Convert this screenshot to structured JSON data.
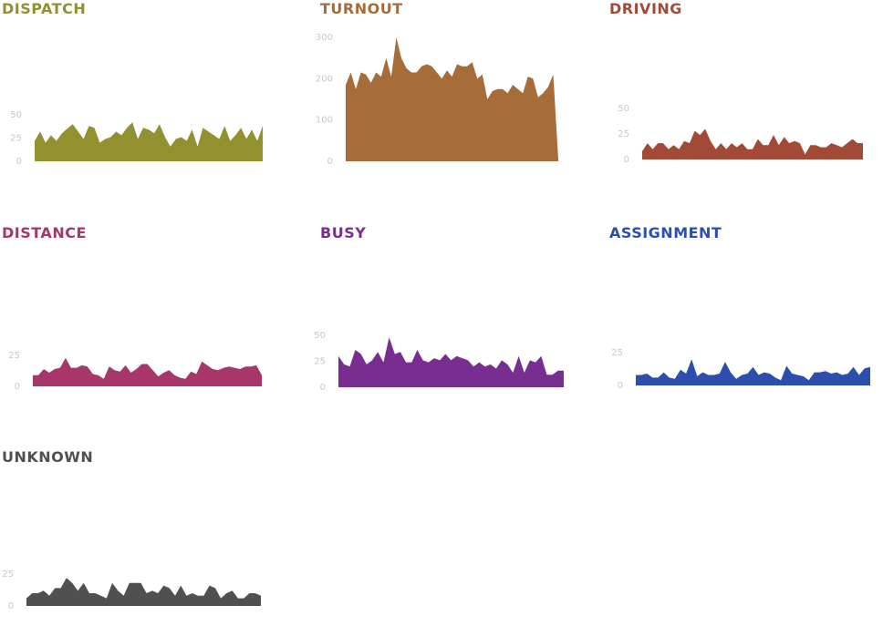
{
  "chart_data": [
    {
      "type": "area",
      "title": "DISPATCH",
      "color": "#929130",
      "ylim": [
        0,
        50
      ],
      "yticks": [
        0,
        25,
        50
      ],
      "xlabel": "",
      "ylabel": "",
      "grid": false,
      "values": [
        22,
        32,
        20,
        28,
        22,
        30,
        35,
        40,
        32,
        24,
        38,
        36,
        20,
        24,
        26,
        32,
        28,
        36,
        42,
        24,
        36,
        34,
        30,
        40,
        26,
        16,
        24,
        26,
        22,
        34,
        16,
        36,
        32,
        28,
        24,
        38,
        22,
        28,
        36,
        24,
        34,
        22,
        38
      ]
    },
    {
      "type": "area",
      "title": "TURNOUT",
      "color": "#A66C39",
      "ylim": [
        0,
        300
      ],
      "yticks": [
        0,
        100,
        200,
        300
      ],
      "xlabel": "",
      "ylabel": "",
      "grid": false,
      "values": [
        185,
        215,
        175,
        215,
        210,
        190,
        215,
        205,
        250,
        205,
        300,
        250,
        225,
        215,
        215,
        230,
        235,
        230,
        215,
        200,
        220,
        205,
        235,
        230,
        230,
        240,
        200,
        210,
        150,
        170,
        175,
        175,
        165,
        185,
        175,
        165,
        205,
        200,
        155,
        165,
        180,
        210,
        5
      ]
    },
    {
      "type": "area",
      "title": "DRIVING",
      "color": "#A34A37",
      "ylim": [
        0,
        50
      ],
      "yticks": [
        0,
        25,
        50
      ],
      "xlabel": "",
      "ylabel": "",
      "grid": false,
      "values": [
        8,
        16,
        10,
        16,
        16,
        10,
        14,
        10,
        18,
        16,
        28,
        24,
        30,
        18,
        10,
        16,
        10,
        16,
        12,
        16,
        10,
        10,
        20,
        14,
        14,
        24,
        14,
        22,
        16,
        18,
        16,
        5,
        14,
        14,
        12,
        12,
        16,
        14,
        12,
        16,
        20,
        16,
        16
      ]
    },
    {
      "type": "area",
      "title": "DISTANCE",
      "color": "#A7376B",
      "ylim": [
        0,
        25
      ],
      "yticks": [
        0,
        25
      ],
      "xlabel": "",
      "ylabel": "",
      "grid": false,
      "values": [
        9,
        9,
        14,
        11,
        14,
        15,
        23,
        15,
        15,
        17,
        16,
        10,
        9,
        6,
        16,
        13,
        12,
        17,
        11,
        14,
        18,
        18,
        13,
        8,
        11,
        13,
        9,
        7,
        6,
        12,
        10,
        20,
        17,
        14,
        13,
        15,
        16,
        15,
        14,
        16,
        16,
        17,
        9
      ]
    },
    {
      "type": "area",
      "title": "BUSY",
      "color": "#772E90",
      "ylim": [
        0,
        50
      ],
      "yticks": [
        0,
        25,
        50
      ],
      "xlabel": "",
      "ylabel": "",
      "grid": false,
      "values": [
        30,
        22,
        20,
        36,
        32,
        22,
        26,
        34,
        24,
        48,
        32,
        34,
        24,
        24,
        36,
        26,
        24,
        28,
        26,
        32,
        26,
        30,
        28,
        26,
        20,
        24,
        20,
        22,
        18,
        26,
        22,
        14,
        30,
        14,
        26,
        24,
        30,
        12,
        12,
        16,
        16
      ]
    },
    {
      "type": "area",
      "title": "ASSIGNMENT",
      "color": "#2E4EAE",
      "ylim": [
        0,
        25
      ],
      "yticks": [
        0,
        25
      ],
      "xlabel": "",
      "ylabel": "",
      "grid": false,
      "values": [
        8,
        8,
        9,
        6,
        6,
        10,
        6,
        5,
        12,
        9,
        20,
        7,
        10,
        8,
        8,
        9,
        18,
        10,
        5,
        8,
        9,
        14,
        8,
        10,
        9,
        6,
        4,
        15,
        9,
        8,
        7,
        4,
        10,
        10,
        11,
        9,
        10,
        8,
        9,
        14,
        8,
        13,
        14
      ]
    },
    {
      "type": "area",
      "title": "UNKNOWN",
      "color": "#505050",
      "ylim": [
        0,
        25
      ],
      "yticks": [
        0,
        25
      ],
      "xlabel": "",
      "ylabel": "",
      "grid": false,
      "values": [
        6,
        10,
        10,
        12,
        8,
        14,
        14,
        22,
        18,
        12,
        18,
        10,
        10,
        8,
        6,
        18,
        12,
        8,
        18,
        18,
        18,
        10,
        12,
        10,
        16,
        14,
        8,
        16,
        8,
        10,
        8,
        8,
        16,
        14,
        6,
        10,
        12,
        6,
        6,
        10,
        10,
        8
      ]
    }
  ]
}
